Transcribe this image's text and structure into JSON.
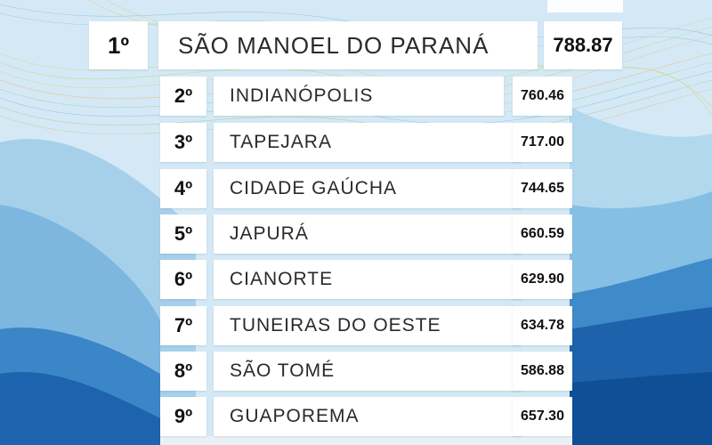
{
  "ranking": [
    {
      "rank": "1º",
      "name": "SÃO MANOEL DO PARANÁ",
      "score": "788.87"
    },
    {
      "rank": "2º",
      "name": "INDIANÓPOLIS",
      "score": "760.46"
    },
    {
      "rank": "3º",
      "name": "TAPEJARA",
      "score": "717.00"
    },
    {
      "rank": "4º",
      "name": "CIDADE GAÚCHA",
      "score": "744.65"
    },
    {
      "rank": "5º",
      "name": "JAPURÁ",
      "score": "660.59"
    },
    {
      "rank": "6º",
      "name": "CIANORTE",
      "score": "629.90"
    },
    {
      "rank": "7º",
      "name": "TUNEIRAS DO OESTE",
      "score": "634.78"
    },
    {
      "rank": "8º",
      "name": "SÃO TOMÉ",
      "score": "586.88"
    },
    {
      "rank": "9º",
      "name": "GUAPOREMA",
      "score": "657.30"
    }
  ],
  "colors": {
    "sky": "#cfe6f3",
    "light_blue": "#a9d3ec",
    "mid_blue": "#4e95cf",
    "dark_blue": "#1b5fa8",
    "navy": "#0e4f96"
  }
}
